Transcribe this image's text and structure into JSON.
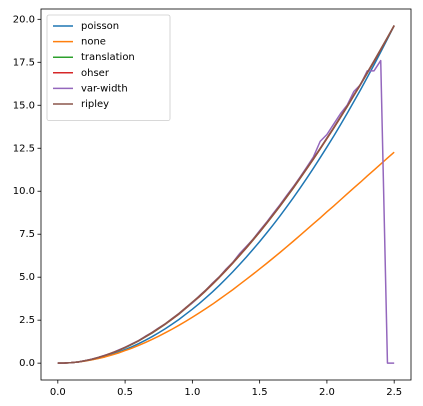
{
  "chart_data": {
    "type": "line",
    "x": [
      0,
      0.05,
      0.1,
      0.15,
      0.2,
      0.25,
      0.3,
      0.35,
      0.4,
      0.45,
      0.5,
      0.55,
      0.6,
      0.65,
      0.7,
      0.75,
      0.8,
      0.85,
      0.9,
      0.95,
      1.0,
      1.05,
      1.1,
      1.15,
      1.2,
      1.25,
      1.3,
      1.35,
      1.4,
      1.45,
      1.5,
      1.55,
      1.6,
      1.65,
      1.7,
      1.75,
      1.8,
      1.85,
      1.9,
      1.95,
      2.0,
      2.05,
      2.1,
      2.15,
      2.2,
      2.25,
      2.3,
      2.35,
      2.4,
      2.45,
      2.5
    ],
    "series": [
      {
        "name": "poisson",
        "color": "#1f77b4",
        "values": [
          0,
          0.01,
          0.03,
          0.07,
          0.13,
          0.2,
          0.28,
          0.38,
          0.5,
          0.64,
          0.79,
          0.95,
          1.13,
          1.33,
          1.54,
          1.77,
          2.01,
          2.27,
          2.54,
          2.84,
          3.14,
          3.46,
          3.8,
          4.15,
          4.52,
          4.91,
          5.31,
          5.73,
          6.16,
          6.61,
          7.07,
          7.55,
          8.04,
          8.55,
          9.08,
          9.62,
          10.18,
          10.75,
          11.34,
          11.95,
          12.57,
          13.2,
          13.85,
          14.52,
          15.21,
          15.9,
          16.62,
          17.35,
          18.1,
          18.86,
          19.63
        ]
      },
      {
        "name": "none",
        "color": "#ff7f0e",
        "values": [
          0,
          0.01,
          0.03,
          0.07,
          0.12,
          0.19,
          0.27,
          0.36,
          0.47,
          0.59,
          0.73,
          0.87,
          1.03,
          1.2,
          1.38,
          1.57,
          1.77,
          1.98,
          2.2,
          2.43,
          2.67,
          2.92,
          3.17,
          3.43,
          3.71,
          3.99,
          4.27,
          4.57,
          4.87,
          5.17,
          5.48,
          5.79,
          6.11,
          6.43,
          6.76,
          7.09,
          7.43,
          7.77,
          8.11,
          8.45,
          8.8,
          9.14,
          9.49,
          9.84,
          10.19,
          10.53,
          10.89,
          11.23,
          11.58,
          11.93,
          12.27
        ]
      },
      {
        "name": "translation",
        "color": "#2ca02c",
        "values": [
          0,
          0.01,
          0.03,
          0.07,
          0.14,
          0.22,
          0.33,
          0.45,
          0.58,
          0.73,
          0.9,
          1.09,
          1.29,
          1.52,
          1.75,
          2.01,
          2.27,
          2.56,
          2.85,
          3.18,
          3.51,
          3.85,
          4.21,
          4.59,
          4.98,
          5.39,
          5.81,
          6.25,
          6.69,
          7.15,
          7.62,
          8.11,
          8.61,
          9.12,
          9.65,
          10.18,
          10.74,
          11.3,
          11.87,
          12.46,
          13.06,
          13.66,
          14.28,
          14.91,
          15.56,
          16.2,
          16.87,
          17.54,
          18.23,
          18.92,
          19.63
        ]
      },
      {
        "name": "ohser",
        "color": "#d62728",
        "values": [
          0,
          0.01,
          0.03,
          0.07,
          0.14,
          0.22,
          0.33,
          0.45,
          0.59,
          0.74,
          0.91,
          1.1,
          1.3,
          1.53,
          1.76,
          2.02,
          2.28,
          2.57,
          2.86,
          3.19,
          3.52,
          3.86,
          4.22,
          4.6,
          4.99,
          5.4,
          5.82,
          6.26,
          6.7,
          7.16,
          7.63,
          8.12,
          8.62,
          9.13,
          9.66,
          10.19,
          10.75,
          11.31,
          11.88,
          12.47,
          13.07,
          13.67,
          14.29,
          14.92,
          15.57,
          16.21,
          16.88,
          17.55,
          18.24,
          18.93,
          19.63
        ]
      },
      {
        "name": "var-width",
        "color": "#9467bd",
        "values": [
          0,
          0.01,
          0.03,
          0.07,
          0.14,
          0.23,
          0.33,
          0.46,
          0.58,
          0.76,
          0.92,
          1.12,
          1.31,
          1.56,
          1.78,
          2.05,
          2.29,
          2.6,
          2.88,
          3.22,
          3.51,
          3.9,
          4.25,
          4.66,
          5.02,
          5.47,
          5.86,
          6.36,
          6.78,
          7.2,
          7.7,
          8.18,
          8.7,
          9.2,
          9.74,
          10.26,
          10.82,
          11.4,
          12.0,
          12.9,
          13.3,
          13.9,
          14.5,
          15.0,
          15.8,
          16.2,
          17.0,
          17.0,
          17.6,
          0,
          0
        ]
      },
      {
        "name": "ripley",
        "color": "#8c564b",
        "values": [
          0,
          0.01,
          0.03,
          0.07,
          0.14,
          0.22,
          0.33,
          0.45,
          0.59,
          0.74,
          0.92,
          1.11,
          1.31,
          1.54,
          1.78,
          2.04,
          2.3,
          2.59,
          2.89,
          3.22,
          3.55,
          3.89,
          4.25,
          4.63,
          5.02,
          5.43,
          5.85,
          6.29,
          6.73,
          7.19,
          7.66,
          8.15,
          8.65,
          9.16,
          9.69,
          10.22,
          10.78,
          11.34,
          11.91,
          12.5,
          13.1,
          13.7,
          14.32,
          14.95,
          15.6,
          16.24,
          16.91,
          17.58,
          18.27,
          18.95,
          19.65
        ]
      }
    ],
    "xlim": [
      -0.125,
      2.625
    ],
    "ylim": [
      -0.98,
      20.6
    ],
    "xticks": [
      {
        "value": 0,
        "label": "0.0"
      },
      0.5,
      {
        "value": 1,
        "label": "1.0"
      },
      1.5,
      {
        "value": 2,
        "label": "2.0"
      },
      2.5
    ],
    "yticks": [
      {
        "value": 0,
        "label": "0.0"
      },
      2.5,
      {
        "value": 5,
        "label": "5.0"
      },
      7.5,
      {
        "value": 10,
        "label": "10.0"
      },
      12.5,
      {
        "value": 15,
        "label": "15.0"
      },
      17.5,
      {
        "value": 20,
        "label": "20.0"
      }
    ],
    "grid": false,
    "legend": "upper-left"
  }
}
